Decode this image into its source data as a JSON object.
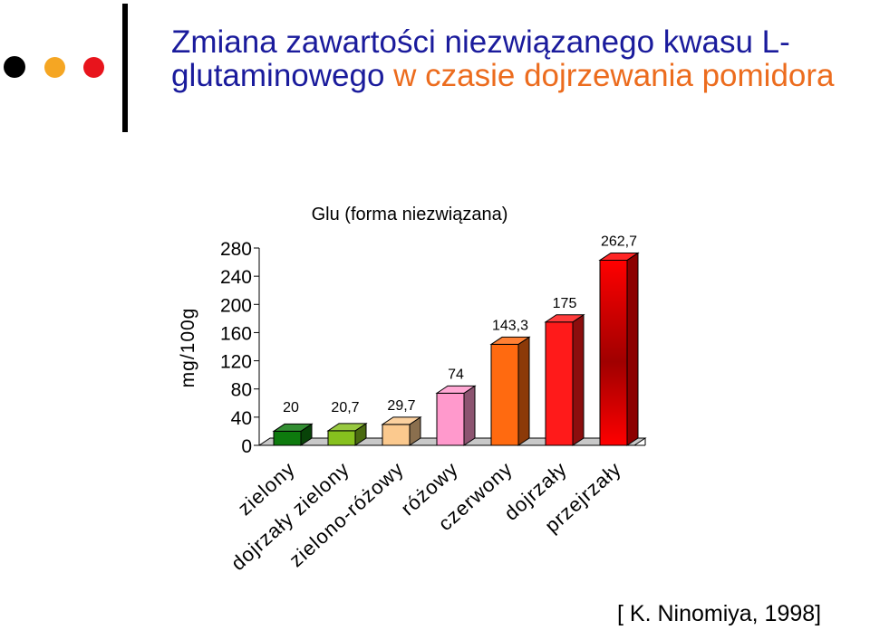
{
  "slide": {
    "title_part1": "Zmiana zawartości niezwiązanego kwasu L-glutaminowego",
    "title_part2": " w czasie dojrzewania pomidora",
    "citation": "[ K. Ninomiya, 1998]",
    "title_colors": {
      "part1": "#1a1b9c",
      "part2": "#ec6c1e"
    },
    "bullet_colors": [
      "#000000",
      "#f5a623",
      "#e8141c"
    ]
  },
  "chart_data": {
    "type": "bar",
    "title": "Glu (forma niezwiązana)",
    "ylabel": "mg/100g",
    "xlabel": "",
    "categories": [
      "zielony",
      "dojrzały zielony",
      "zielono-różowy",
      "różowy",
      "czerwony",
      "dojrzały",
      "przejrzały"
    ],
    "values": [
      20,
      20.7,
      29.7,
      74,
      143.3,
      175,
      262.7
    ],
    "value_labels": [
      "20",
      "20,7",
      "29,7",
      "74",
      "143,3",
      "175",
      "262,7"
    ],
    "bar_colors": [
      "#0e7a0e",
      "#86c01e",
      "#fbc98e",
      "#ff99cc",
      "#ff6a10",
      "#ff1a1a",
      "#ff0000"
    ],
    "ylim": [
      0,
      280
    ],
    "yticks": [
      0,
      40,
      80,
      120,
      160,
      200,
      240,
      280
    ],
    "grid": false,
    "legend": "none",
    "style": "3d-bar"
  }
}
